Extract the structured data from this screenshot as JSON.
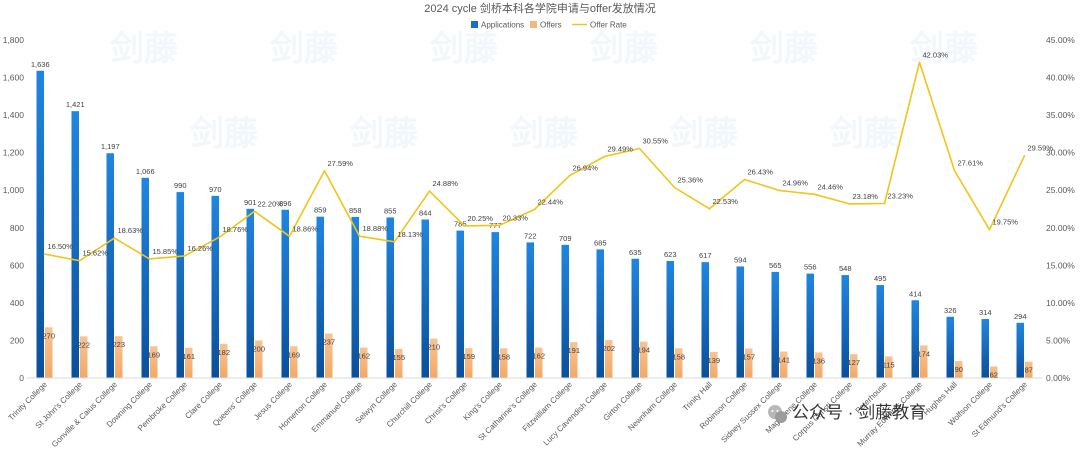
{
  "chart_data": {
    "type": "bar",
    "title": "2024 cycle 剑桥本科各学院申请与offer发放情况",
    "categories": [
      "Trinity College",
      "St John's College",
      "Gonville & Caius College",
      "Downing College",
      "Pembroke College",
      "Clare College",
      "Queens' College",
      "Jesus College",
      "Homerton College",
      "Emmanuel College",
      "Selwyn College",
      "Churchill College",
      "Christ's College",
      "King's College",
      "St Catharine's College",
      "Fitzwilliam College",
      "Lucy Cavendish College",
      "Girton College",
      "Newnham College",
      "Trinity Hall",
      "Robinson College",
      "Sidney Sussex College",
      "Magdalene College",
      "Corpus Christi College",
      "Peterhouse",
      "Murray Edwards College",
      "Hughes Hall",
      "Wolfson College",
      "St Edmund's College"
    ],
    "series": [
      {
        "name": "Applications",
        "axis": "left",
        "color": "#1a7ad4",
        "values": [
          1636,
          1421,
          1197,
          1066,
          990,
          970,
          901,
          896,
          859,
          858,
          855,
          844,
          785,
          777,
          722,
          709,
          685,
          635,
          623,
          617,
          594,
          565,
          556,
          548,
          495,
          414,
          326,
          314,
          294
        ],
        "value_labels": [
          "1,636",
          "1,421",
          "1,197",
          "1,066",
          "990",
          "970",
          "901",
          "896",
          "859",
          "858",
          "855",
          "844",
          "785",
          "777",
          "722",
          "709",
          "685",
          "635",
          "623",
          "617",
          "594",
          "565",
          "556",
          "548",
          "495",
          "414",
          "326",
          "314",
          "294"
        ]
      },
      {
        "name": "Offers",
        "axis": "left",
        "color": "#f5b77e",
        "values": [
          270,
          222,
          223,
          169,
          161,
          182,
          200,
          169,
          237,
          162,
          155,
          210,
          159,
          158,
          162,
          191,
          202,
          194,
          158,
          139,
          157,
          141,
          136,
          127,
          115,
          174,
          90,
          62,
          87
        ],
        "value_labels": [
          "270",
          "222",
          "223",
          "169",
          "161",
          "182",
          "200",
          "169",
          "237",
          "162",
          "155",
          "210",
          "159",
          "158",
          "162",
          "191",
          "202",
          "194",
          "158",
          "139",
          "157",
          "141",
          "136",
          "127",
          "115",
          "174",
          "90",
          "62",
          "87"
        ]
      },
      {
        "name": "Offer Rate",
        "axis": "right",
        "color": "#f2c418",
        "type": "line",
        "values": [
          16.5,
          15.62,
          18.63,
          15.85,
          16.26,
          18.76,
          22.2,
          18.86,
          27.59,
          18.88,
          18.13,
          24.88,
          20.25,
          20.33,
          22.44,
          26.94,
          29.49,
          30.55,
          25.36,
          22.53,
          26.43,
          24.96,
          24.46,
          23.18,
          23.23,
          42.03,
          27.61,
          19.75,
          29.59
        ],
        "value_labels": [
          "16.50%",
          "15.62%",
          "18.63%",
          "15.85%",
          "16.26%",
          "18.76%",
          "22.20%",
          "18.86%",
          "27.59%",
          "18.88%",
          "18.13%",
          "24.88%",
          "20.25%",
          "20.33%",
          "22.44%",
          "26.94%",
          "29.49%",
          "30.55%",
          "25.36%",
          "22.53%",
          "26.43%",
          "24.96%",
          "24.46%",
          "23.18%",
          "23.23%",
          "42.03%",
          "27.61%",
          "19.75%",
          "29.59%"
        ]
      }
    ],
    "ylim": [
      0,
      1800
    ],
    "y_ticks": [
      "0",
      "200",
      "400",
      "600",
      "800",
      "1,000",
      "1,200",
      "1,400",
      "1,600",
      "1,800"
    ],
    "y2lim": [
      0,
      45
    ],
    "y2_ticks": [
      "0.00%",
      "5.00%",
      "10.00%",
      "15.00%",
      "20.00%",
      "25.00%",
      "30.00%",
      "35.00%",
      "40.00%",
      "45.00%"
    ],
    "grid": false,
    "legend_position": "top-center"
  },
  "watermark": {
    "brand_text": "剑藤",
    "footer_text": "公众号 · 剑藤教育",
    "icon": "wechat-icon"
  }
}
